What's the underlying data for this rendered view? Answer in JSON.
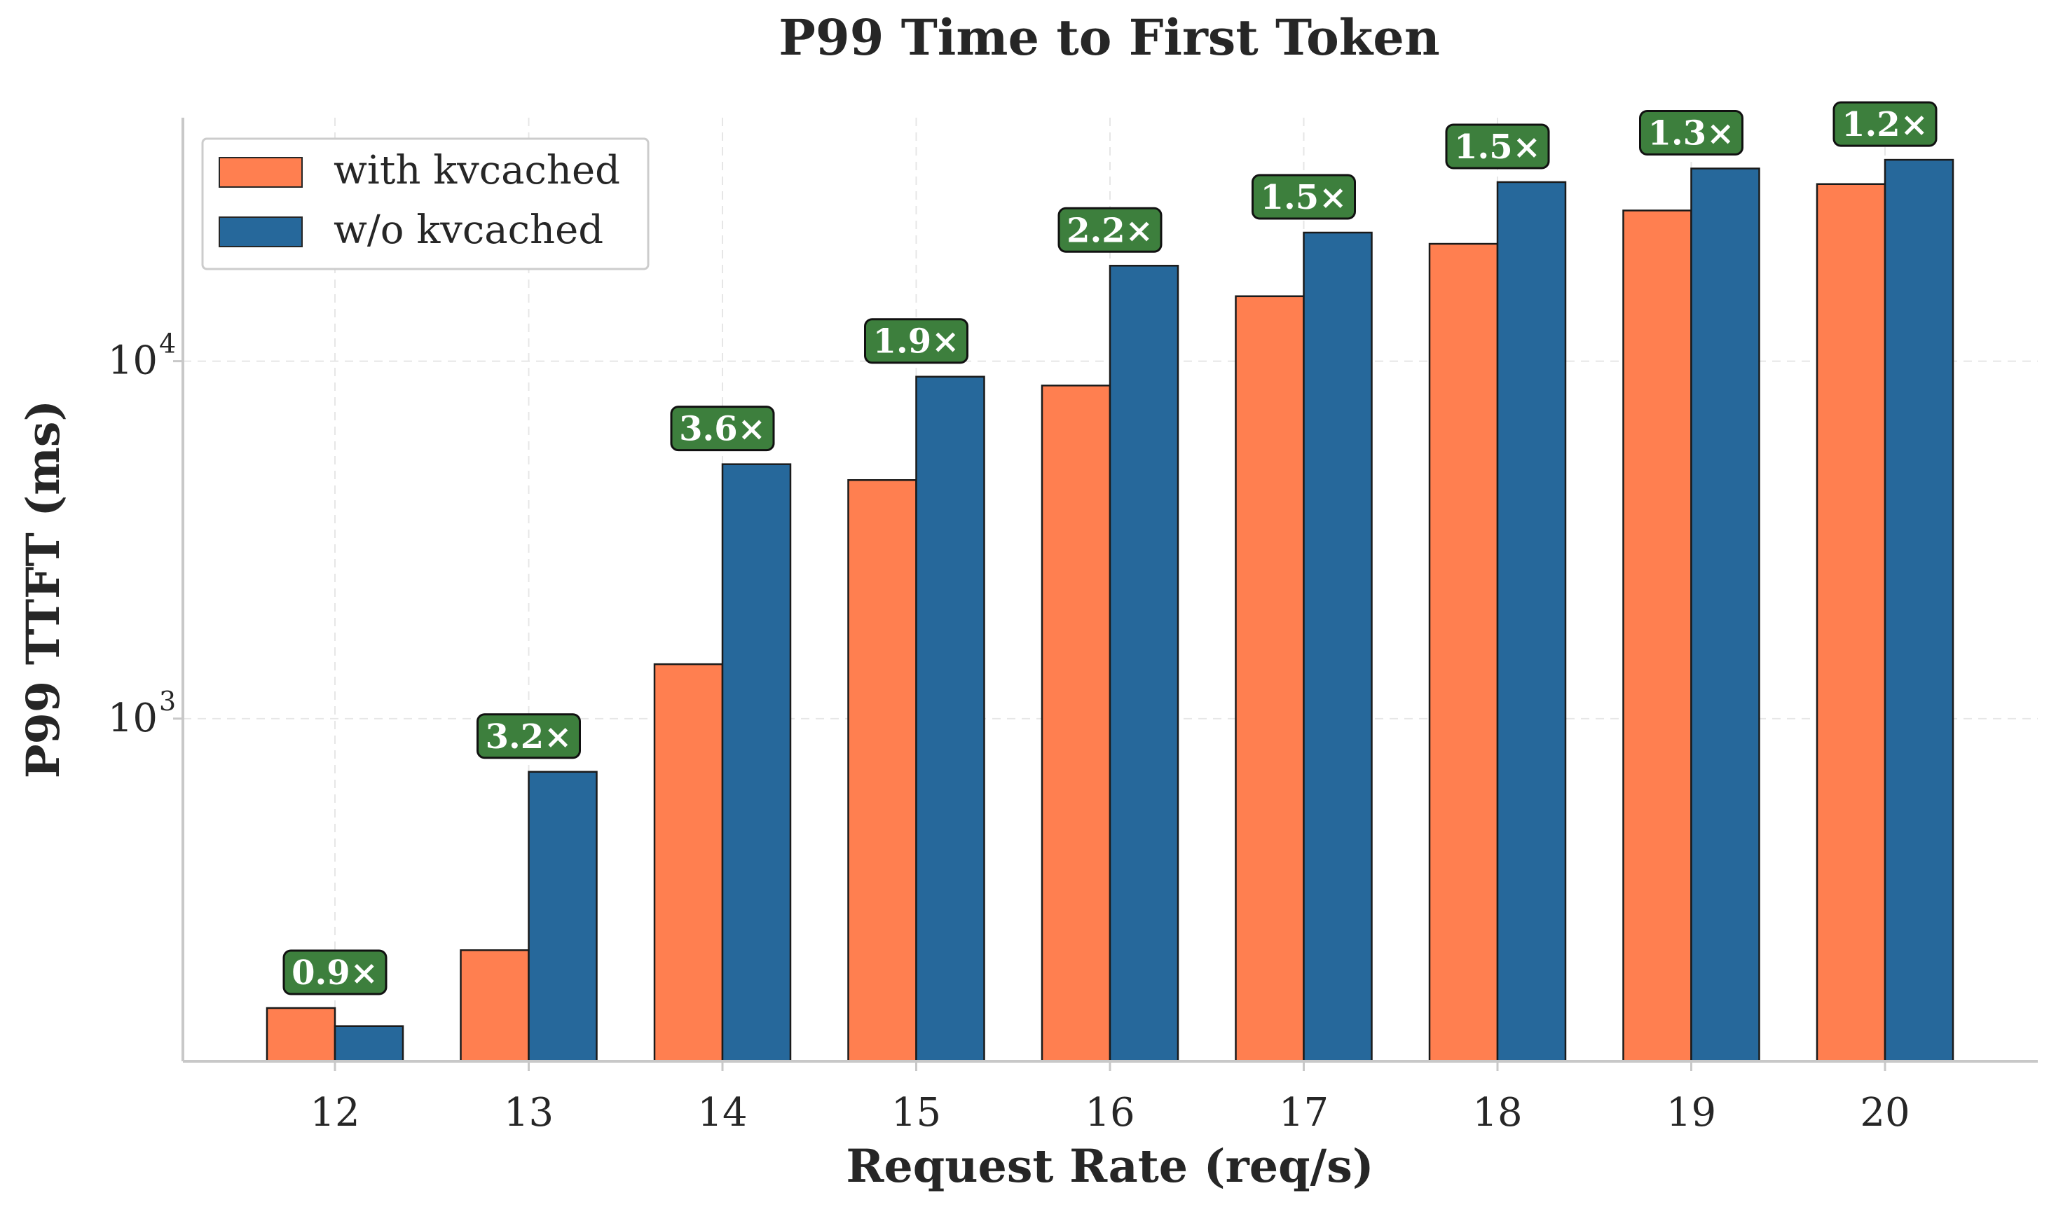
{
  "chart_data": {
    "type": "bar",
    "title": "P99 Time to First Token",
    "xlabel": "Request Rate (req/s)",
    "ylabel": "P99 TTFT (ms)",
    "yscale": "log",
    "ylim": [
      110,
      48000
    ],
    "categories": [
      "12",
      "13",
      "14",
      "15",
      "16",
      "17",
      "18",
      "19",
      "20"
    ],
    "yticks": [
      {
        "value": 1000,
        "base": "10",
        "exp": "3"
      },
      {
        "value": 10000,
        "base": "10",
        "exp": "4"
      }
    ],
    "series": [
      {
        "name": "with kvcached",
        "color": "#ff7f50",
        "values": [
          155,
          225,
          1420,
          4650,
          8550,
          15200,
          21300,
          26400,
          31300
        ]
      },
      {
        "name": "w/o kvcached",
        "color": "#26689b",
        "values": [
          138,
          710,
          5150,
          9050,
          18500,
          22900,
          31700,
          34600,
          36600
        ]
      }
    ],
    "annotations": [
      "0.9×",
      "3.2×",
      "3.6×",
      "1.9×",
      "2.2×",
      "1.5×",
      "1.5×",
      "1.3×",
      "1.2×"
    ],
    "annotation_color": "#3d7f3d",
    "grid": true,
    "legend_position": "upper-left"
  }
}
